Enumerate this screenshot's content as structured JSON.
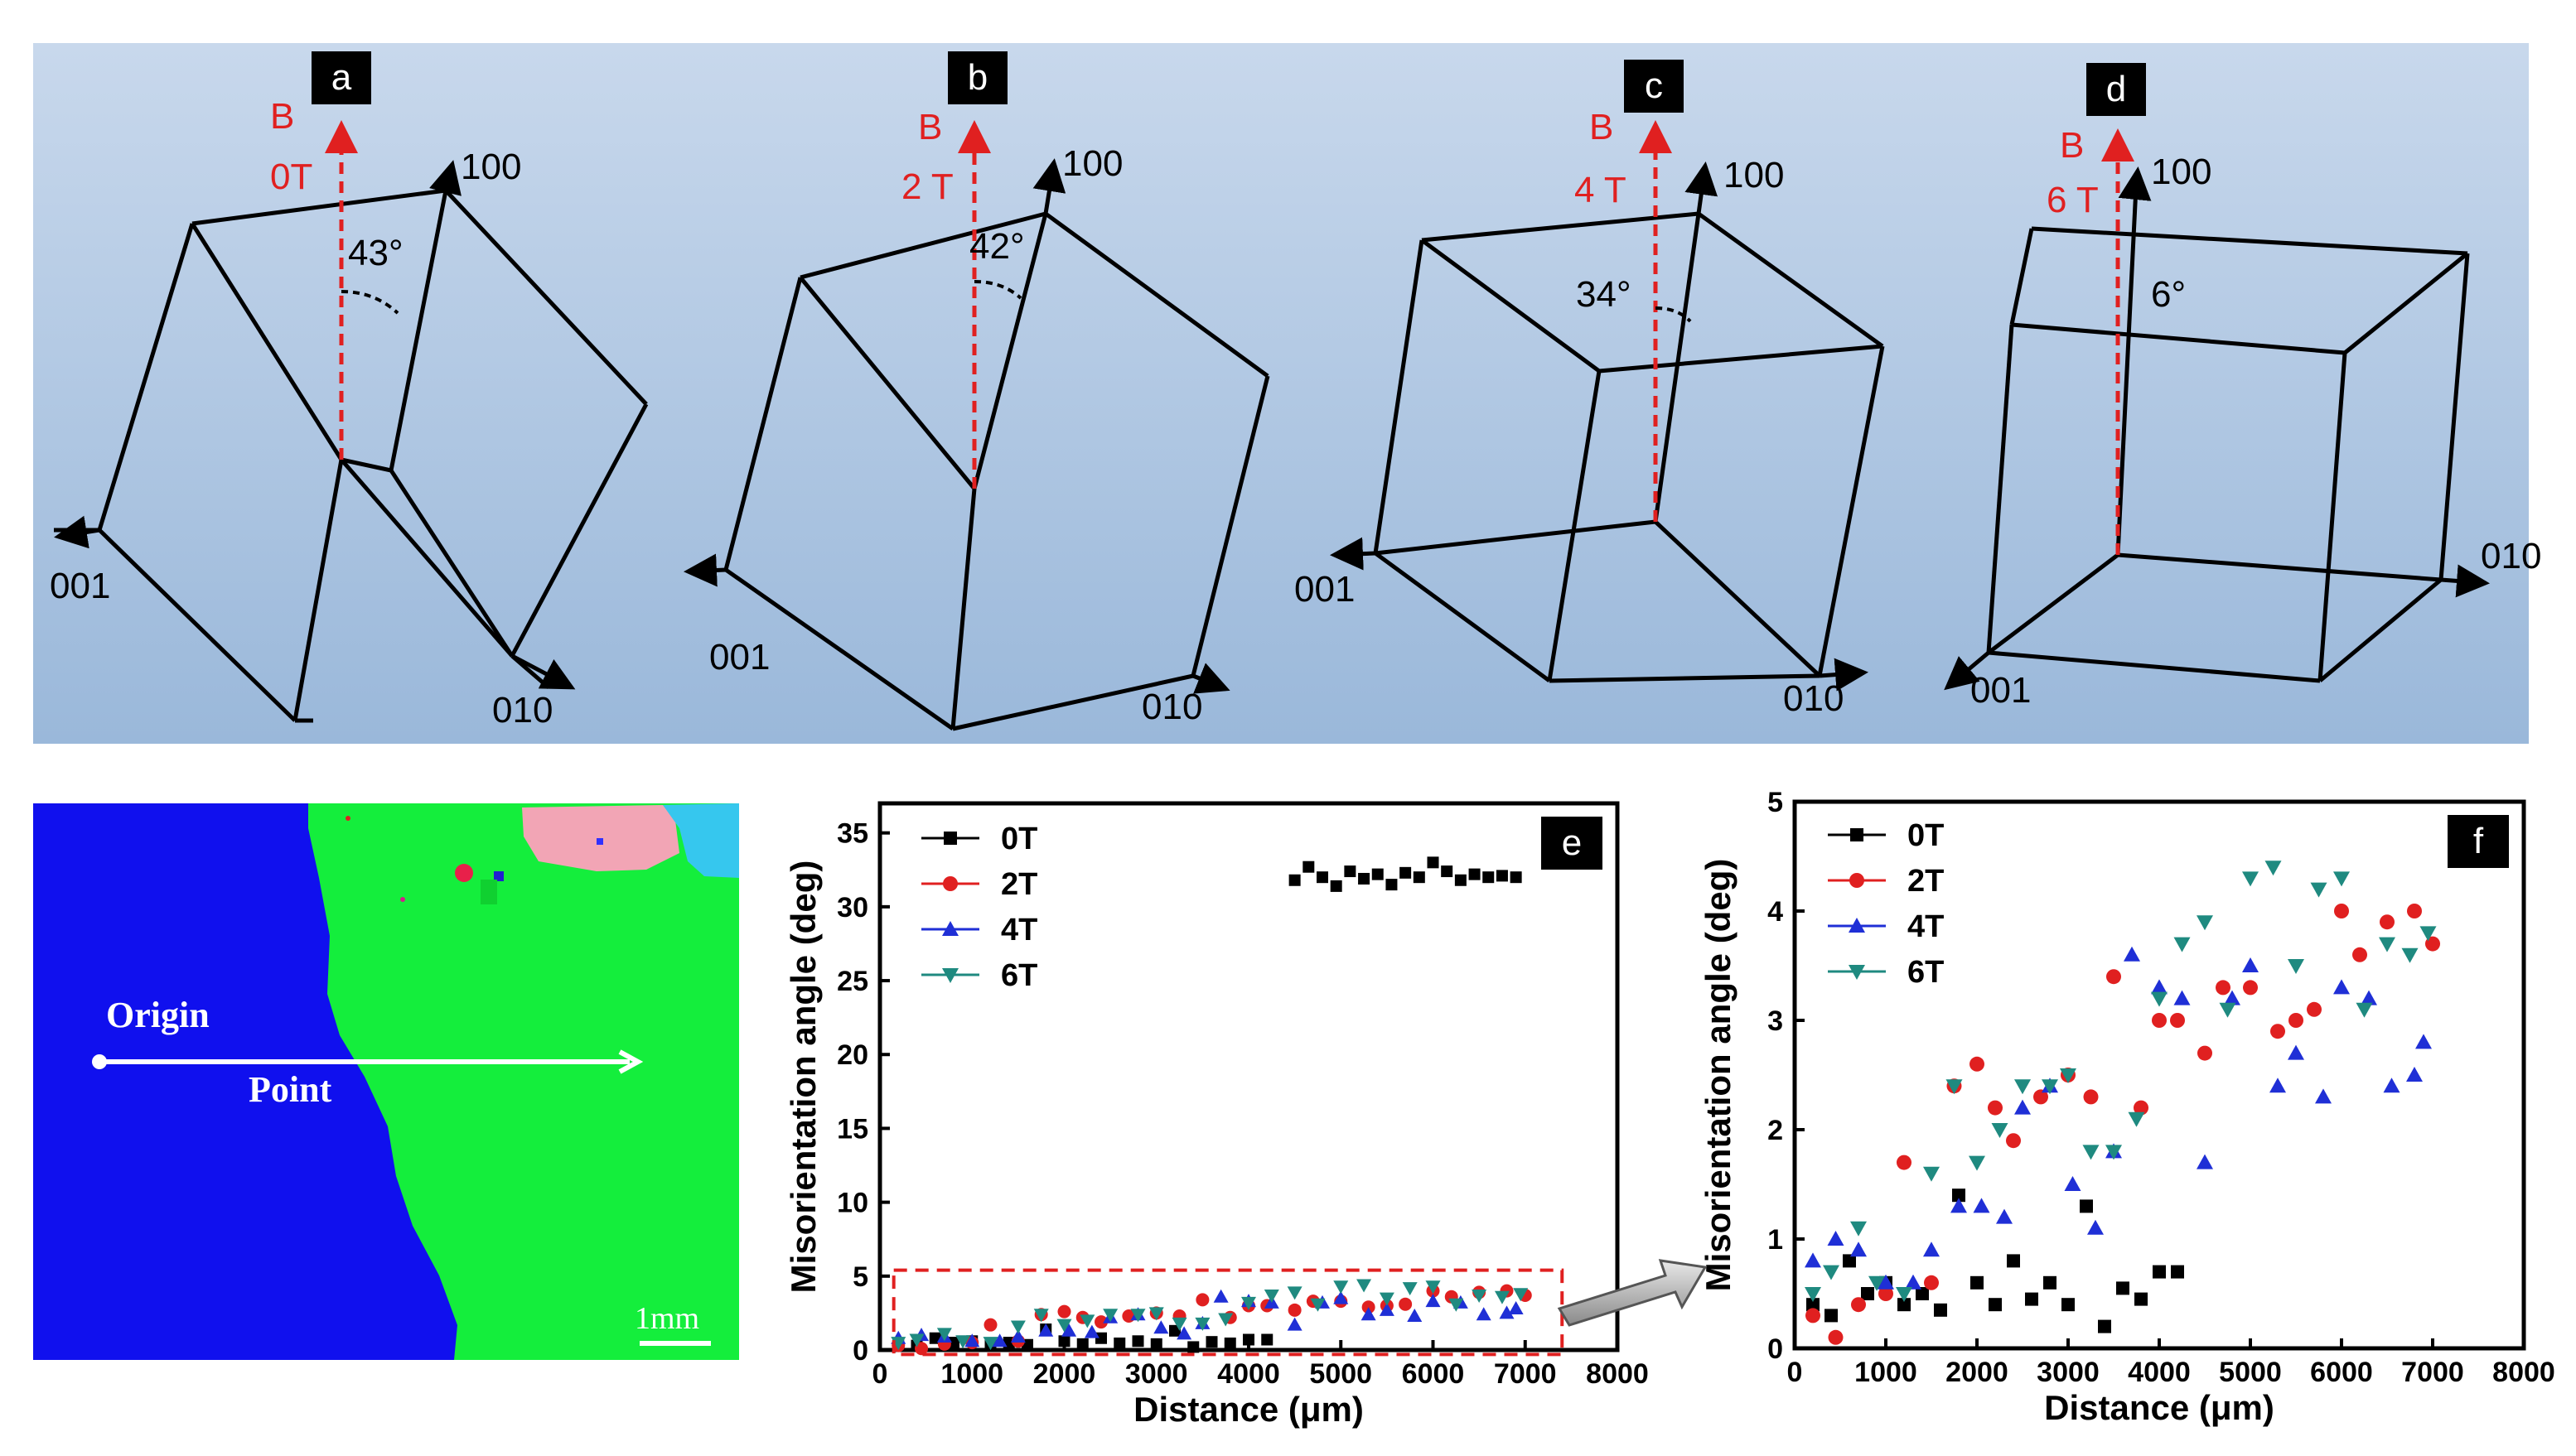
{
  "panels": {
    "a": {
      "letter": "a",
      "field": "0T",
      "b_label": "B",
      "angle": "43°"
    },
    "b": {
      "letter": "b",
      "field": "2 T",
      "b_label": "B",
      "angle": "42°"
    },
    "c": {
      "letter": "c",
      "field": "4 T",
      "b_label": "B",
      "angle": "34°"
    },
    "d": {
      "letter": "d",
      "field": "6 T",
      "b_label": "B",
      "angle": "6°"
    }
  },
  "axes_labels": {
    "x100": "100",
    "x010": "010",
    "x001": "001"
  },
  "map": {
    "origin": "Origin",
    "point": "Point",
    "scale": "1mm"
  },
  "colors": {
    "band_top": "#bcd0e6",
    "band_bottom": "#9fbcdc",
    "red": "#e02020",
    "s0": "#000000",
    "s2": "#e02020",
    "s4": "#1f2fd6",
    "s6": "#1f8a80"
  },
  "chart_data": [
    {
      "id": "e",
      "letter": "e",
      "type": "scatter",
      "xlabel": "Distance (μm)",
      "ylabel": "Misorientation angle (deg)",
      "xlim": [
        0,
        8000
      ],
      "ylim": [
        0,
        37
      ],
      "xticks": [
        0,
        1000,
        2000,
        3000,
        4000,
        5000,
        6000,
        7000,
        8000
      ],
      "yticks": [
        0,
        5,
        10,
        15,
        20,
        25,
        30,
        35
      ],
      "series": [
        {
          "name": "0T",
          "x": [
            200,
            400,
            600,
            800,
            1000,
            1200,
            1400,
            1600,
            1800,
            2000,
            2200,
            2400,
            2600,
            2800,
            3000,
            3200,
            3400,
            3600,
            3800,
            4000,
            4200,
            4500,
            4650,
            4800,
            4950,
            5100,
            5250,
            5400,
            5550,
            5700,
            5850,
            6000,
            6150,
            6300,
            6450,
            6600,
            6750,
            6900
          ],
          "y": [
            0.4,
            0.3,
            0.8,
            0.5,
            0.6,
            0.4,
            0.5,
            0.35,
            1.4,
            0.6,
            0.4,
            0.8,
            0.45,
            0.6,
            0.4,
            1.3,
            0.2,
            0.55,
            0.45,
            0.7,
            0.7,
            31.8,
            32.7,
            32.0,
            31.4,
            32.4,
            31.9,
            32.2,
            31.5,
            32.3,
            32.0,
            33.0,
            32.4,
            31.8,
            32.2,
            32.0,
            32.1,
            32.0
          ]
        },
        {
          "name": "2T",
          "x": [
            200,
            450,
            700,
            1000,
            1200,
            1500,
            1750,
            2000,
            2200,
            2400,
            2700,
            3000,
            3250,
            3500,
            3800,
            4000,
            4200,
            4500,
            4700,
            5000,
            5300,
            5500,
            5700,
            6000,
            6200,
            6500,
            6800,
            7000
          ],
          "y": [
            0.3,
            0.1,
            0.4,
            0.5,
            1.7,
            0.6,
            2.4,
            2.6,
            2.2,
            1.9,
            2.3,
            2.5,
            2.3,
            3.4,
            2.2,
            3.0,
            3.0,
            2.7,
            3.3,
            3.3,
            2.9,
            3.0,
            3.1,
            4.0,
            3.6,
            3.9,
            4.0,
            3.7
          ]
        },
        {
          "name": "4T",
          "x": [
            200,
            450,
            700,
            1000,
            1300,
            1500,
            1800,
            2050,
            2300,
            2500,
            2800,
            3050,
            3300,
            3500,
            3700,
            4000,
            4250,
            4500,
            4800,
            5000,
            5300,
            5500,
            5800,
            6000,
            6300,
            6550,
            6800,
            6900
          ],
          "y": [
            0.8,
            1.0,
            0.9,
            0.6,
            0.6,
            0.9,
            1.3,
            1.3,
            1.2,
            2.2,
            2.4,
            1.5,
            1.1,
            1.8,
            3.6,
            3.3,
            3.2,
            1.7,
            3.2,
            3.5,
            2.4,
            2.7,
            2.3,
            3.3,
            3.2,
            2.4,
            2.5,
            2.8
          ]
        },
        {
          "name": "6T",
          "x": [
            200,
            400,
            700,
            900,
            1200,
            1500,
            1750,
            2000,
            2250,
            2500,
            2800,
            3000,
            3250,
            3500,
            3750,
            4000,
            4250,
            4500,
            4750,
            5000,
            5250,
            5500,
            5750,
            6000,
            6250,
            6500,
            6750,
            6950
          ],
          "y": [
            0.5,
            0.7,
            1.1,
            0.6,
            0.5,
            1.6,
            2.4,
            1.7,
            2.0,
            2.4,
            2.4,
            2.5,
            1.8,
            1.8,
            2.1,
            3.2,
            3.7,
            3.9,
            3.1,
            4.3,
            4.4,
            3.5,
            4.2,
            4.3,
            3.1,
            3.7,
            3.6,
            3.8
          ]
        }
      ]
    },
    {
      "id": "f",
      "letter": "f",
      "type": "scatter",
      "xlabel": "Distance (μm)",
      "ylabel": "Misorientation angle (deg)",
      "xlim": [
        0,
        8000
      ],
      "ylim": [
        0,
        5
      ],
      "xticks": [
        0,
        1000,
        2000,
        3000,
        4000,
        5000,
        6000,
        7000,
        8000
      ],
      "yticks": [
        0,
        1,
        2,
        3,
        4,
        5
      ],
      "series": "same-as-e-lower"
    }
  ],
  "legend": [
    "0T",
    "2T",
    "4T",
    "6T"
  ]
}
